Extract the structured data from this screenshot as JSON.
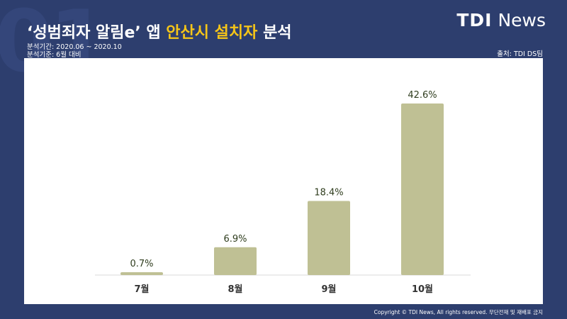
{
  "header": {
    "title_part1": "‘성범죄자 알림e’ 앱 ",
    "title_highlight": "안산시 설치자",
    "title_part2": " 분석",
    "period": "분석기간: 2020.06 ~ 2020.10",
    "basis": "분석기준: 6월 대비",
    "source": "출처: TDI DS팀"
  },
  "logo": {
    "bold": "TDI",
    "regular": "News"
  },
  "footer": {
    "copyright": "Copyright © TDI News, All rights reserved. 무단전재 및 재배포 금지"
  },
  "colors": {
    "background": "#2d3e6e",
    "bar": "#bfc094",
    "label": "#2f3d1e",
    "highlight": "#f5c518"
  },
  "chart_data": {
    "type": "bar",
    "categories": [
      "7월",
      "8월",
      "9월",
      "10월"
    ],
    "values": [
      0.7,
      6.9,
      18.4,
      42.6
    ],
    "value_labels": [
      "0.7%",
      "6.9%",
      "18.4%",
      "42.6%"
    ],
    "unit": "%",
    "ylim": [
      0,
      42.6
    ],
    "grid": false
  }
}
